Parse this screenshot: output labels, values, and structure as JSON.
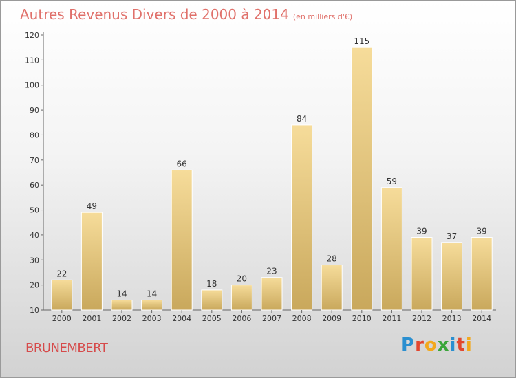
{
  "title": "Autres Revenus Divers de 2000 à 2014",
  "subtitle": "(en milliers d'€)",
  "place": "BRUNEMBERT",
  "logo": {
    "text": "Proxiti",
    "letters": [
      {
        "ch": "P",
        "color": "#2a8fd0"
      },
      {
        "ch": "r",
        "color": "#e2462e"
      },
      {
        "ch": "o",
        "color": "#f2a81c"
      },
      {
        "ch": "x",
        "color": "#3aa53a"
      },
      {
        "ch": "i",
        "color": "#2a8fd0"
      },
      {
        "ch": "t",
        "color": "#e2462e"
      },
      {
        "ch": "i",
        "color": "#f2a81c"
      }
    ]
  },
  "colors": {
    "bar_light": "#f6dc9a",
    "bar_dark": "#c9a85c",
    "title": "#e0706a",
    "place": "#d64a4a"
  },
  "chart_data": {
    "type": "bar",
    "categories": [
      "2000",
      "2001",
      "2002",
      "2003",
      "2004",
      "2005",
      "2006",
      "2007",
      "2008",
      "2009",
      "2010",
      "2011",
      "2012",
      "2013",
      "2014"
    ],
    "values": [
      22,
      49,
      14,
      14,
      66,
      18,
      20,
      23,
      84,
      28,
      115,
      59,
      39,
      37,
      39
    ],
    "ylim": [
      10,
      120
    ],
    "yticks": [
      10,
      20,
      30,
      40,
      50,
      60,
      70,
      80,
      90,
      100,
      110,
      120
    ],
    "grid": false
  }
}
